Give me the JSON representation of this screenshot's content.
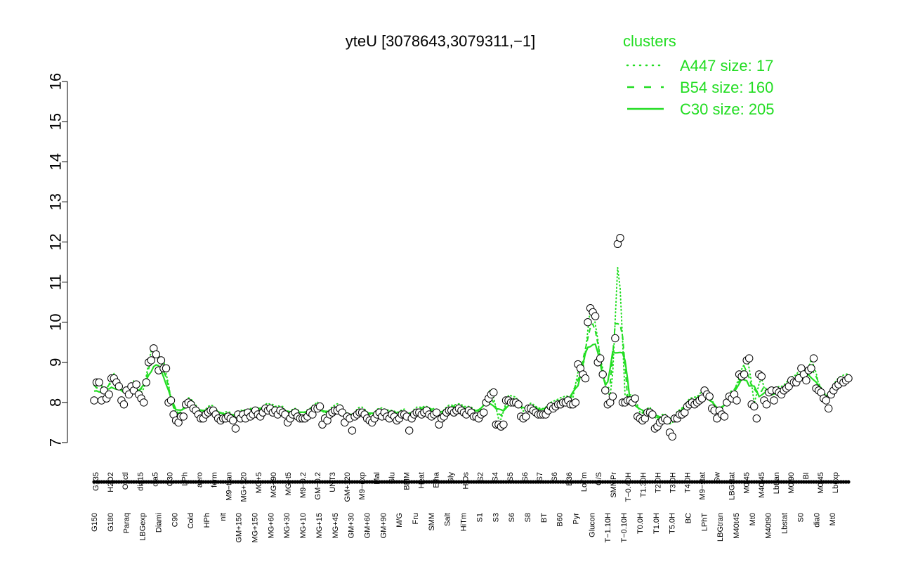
{
  "chart_data": {
    "type": "line",
    "title": "yteU [3078643,3079311,−1]",
    "xlabel": "",
    "ylabel": "",
    "ylim": [
      7,
      16
    ],
    "yticks": [
      7,
      8,
      9,
      10,
      11,
      12,
      13,
      14,
      15,
      16
    ],
    "grid": false,
    "legend_position": "top-right",
    "legend_title": "clusters",
    "series_color": "#22dd22",
    "point_fill": "#ffffff",
    "point_stroke": "#000000",
    "legend": [
      {
        "label": "A447 size: 17",
        "style": "dotted"
      },
      {
        "label": "B54 size: 160",
        "style": "dashed"
      },
      {
        "label": "C30 size: 205",
        "style": "solid"
      }
    ],
    "x_tick_labels_upper": [
      "G135",
      "H2O2",
      "Oxctl",
      "dia15",
      "dia5",
      "C30",
      "LPh",
      "aero",
      "ferm",
      "M9−tran",
      "MG+120",
      "MG+5",
      "MG+90",
      "MG+t5",
      "M9−0.2",
      "GM−0.2",
      "UNT3",
      "GM+120",
      "M9−exp",
      "Mal",
      "Glu",
      "BMM",
      "Heat",
      "Etha",
      "Gly",
      "HiOs",
      "S2",
      "S4",
      "S5",
      "S6",
      "S7",
      "S6",
      "B36",
      "LoTm",
      "G/S",
      "SMMPr",
      "T−0.40H",
      "T1.30H",
      "T2.0H",
      "T3.0H",
      "T4.0H",
      "M9−stat",
      "Sw",
      "LBGstat",
      "M0t45",
      "M40t45",
      "Lbtran",
      "M0t90",
      "BI",
      "M0t45",
      "Lbexp"
    ],
    "x_tick_labels_lower": [
      "G150",
      "G180",
      "Paraq",
      "LBGexp",
      "Diami",
      "C90",
      "Cold",
      "HPh",
      "nit",
      "GM+150",
      "MG+150",
      "MG+60",
      "MG+30",
      "MG+10",
      "MG+15",
      "MG+45",
      "GM+30",
      "GM+60",
      "GM+90",
      "M/G",
      "Fru",
      "SMM",
      "Salt",
      "HiTm",
      "S1",
      "S3",
      "S6",
      "S8",
      "BT",
      "B60",
      "Pyr",
      "Glucon",
      "T−1.10H",
      "T−0.10H",
      "T0.0H",
      "T1.0H",
      "T5.0H",
      "BC",
      "LPhT",
      "LBGtran",
      "M40t45",
      "Mt0",
      "M40t90",
      "Lbstat",
      "S0",
      "dia0",
      "Mt0"
    ],
    "series": [
      {
        "name": "expression",
        "values": [
          8.05,
          8.5,
          8.5,
          8.05,
          8.3,
          8.1,
          8.2,
          8.6,
          8.6,
          8.5,
          8.4,
          8.05,
          7.95,
          8.3,
          8.2,
          8.4,
          8.3,
          8.45,
          8.2,
          8.1,
          8.0,
          8.5,
          9.0,
          9.05,
          9.35,
          9.2,
          8.8,
          9.05,
          8.85,
          8.85,
          8.0,
          8.05,
          7.7,
          7.55,
          7.5,
          7.65,
          7.65,
          7.95,
          8.0,
          7.95,
          7.85,
          7.8,
          7.7,
          7.6,
          7.6,
          7.7,
          7.75,
          7.8,
          7.8,
          7.7,
          7.6,
          7.55,
          7.6,
          7.6,
          7.65,
          7.6,
          7.55,
          7.35,
          7.7,
          7.6,
          7.7,
          7.6,
          7.75,
          7.65,
          7.7,
          7.8,
          7.7,
          7.65,
          7.75,
          7.85,
          7.8,
          7.85,
          7.75,
          7.8,
          7.7,
          7.8,
          7.75,
          7.7,
          7.5,
          7.6,
          7.7,
          7.75,
          7.65,
          7.6,
          7.6,
          7.6,
          7.65,
          7.75,
          7.7,
          7.85,
          7.85,
          7.9,
          7.45,
          7.6,
          7.55,
          7.7,
          7.75,
          7.8,
          7.8,
          7.85,
          7.75,
          7.5,
          7.65,
          7.6,
          7.3,
          7.65,
          7.7,
          7.75,
          7.75,
          7.7,
          7.6,
          7.55,
          7.5,
          7.6,
          7.7,
          7.75,
          7.65,
          7.75,
          7.65,
          7.6,
          7.7,
          7.65,
          7.55,
          7.6,
          7.7,
          7.7,
          7.65,
          7.3,
          7.6,
          7.7,
          7.75,
          7.75,
          7.7,
          7.75,
          7.8,
          7.7,
          7.65,
          7.7,
          7.75,
          7.45,
          7.6,
          7.65,
          7.75,
          7.8,
          7.8,
          7.75,
          7.8,
          7.85,
          7.8,
          7.75,
          7.7,
          7.8,
          7.75,
          7.65,
          7.65,
          7.6,
          7.7,
          7.75,
          8.0,
          8.1,
          8.2,
          8.25,
          7.45,
          7.45,
          7.4,
          7.45,
          8.05,
          8.05,
          8.0,
          8.0,
          8.0,
          7.95,
          7.65,
          7.6,
          7.65,
          7.85,
          7.85,
          7.8,
          7.75,
          7.7,
          7.7,
          7.7,
          7.7,
          7.8,
          7.9,
          7.85,
          7.9,
          7.95,
          7.95,
          8.0,
          8.0,
          8.05,
          7.95,
          7.95,
          8.0,
          8.95,
          8.85,
          8.7,
          8.6,
          10.0,
          10.35,
          10.25,
          10.15,
          9.0,
          9.1,
          8.7,
          8.3,
          7.95,
          8.0,
          8.15,
          9.6,
          11.95,
          12.1,
          8.0,
          8.0,
          8.05,
          8.05,
          8.0,
          8.1,
          7.65,
          7.6,
          7.55,
          7.6,
          7.75,
          7.75,
          7.7,
          7.35,
          7.4,
          7.5,
          7.55,
          7.6,
          7.55,
          7.25,
          7.15,
          7.6,
          7.6,
          7.7,
          7.7,
          7.75,
          7.9,
          7.95,
          8.0,
          7.95,
          8.0,
          8.05,
          8.1,
          8.3,
          8.2,
          8.15,
          7.85,
          7.8,
          7.6,
          7.8,
          7.7,
          7.65,
          8.0,
          8.15,
          8.1,
          8.2,
          8.05,
          8.7,
          8.65,
          8.7,
          9.05,
          9.1,
          7.95,
          7.9,
          7.6,
          8.7,
          8.65,
          8.05,
          7.95,
          8.25,
          8.3,
          8.05,
          8.3,
          8.25,
          8.2,
          8.3,
          8.35,
          8.4,
          8.55,
          8.5,
          8.5,
          8.6,
          8.85,
          8.7,
          8.55,
          8.8,
          8.85,
          9.1,
          8.35,
          8.3,
          8.25,
          8.1,
          8.05,
          7.85,
          8.2,
          8.3,
          8.4,
          8.45,
          8.55,
          8.5,
          8.55,
          8.6
        ]
      }
    ]
  }
}
